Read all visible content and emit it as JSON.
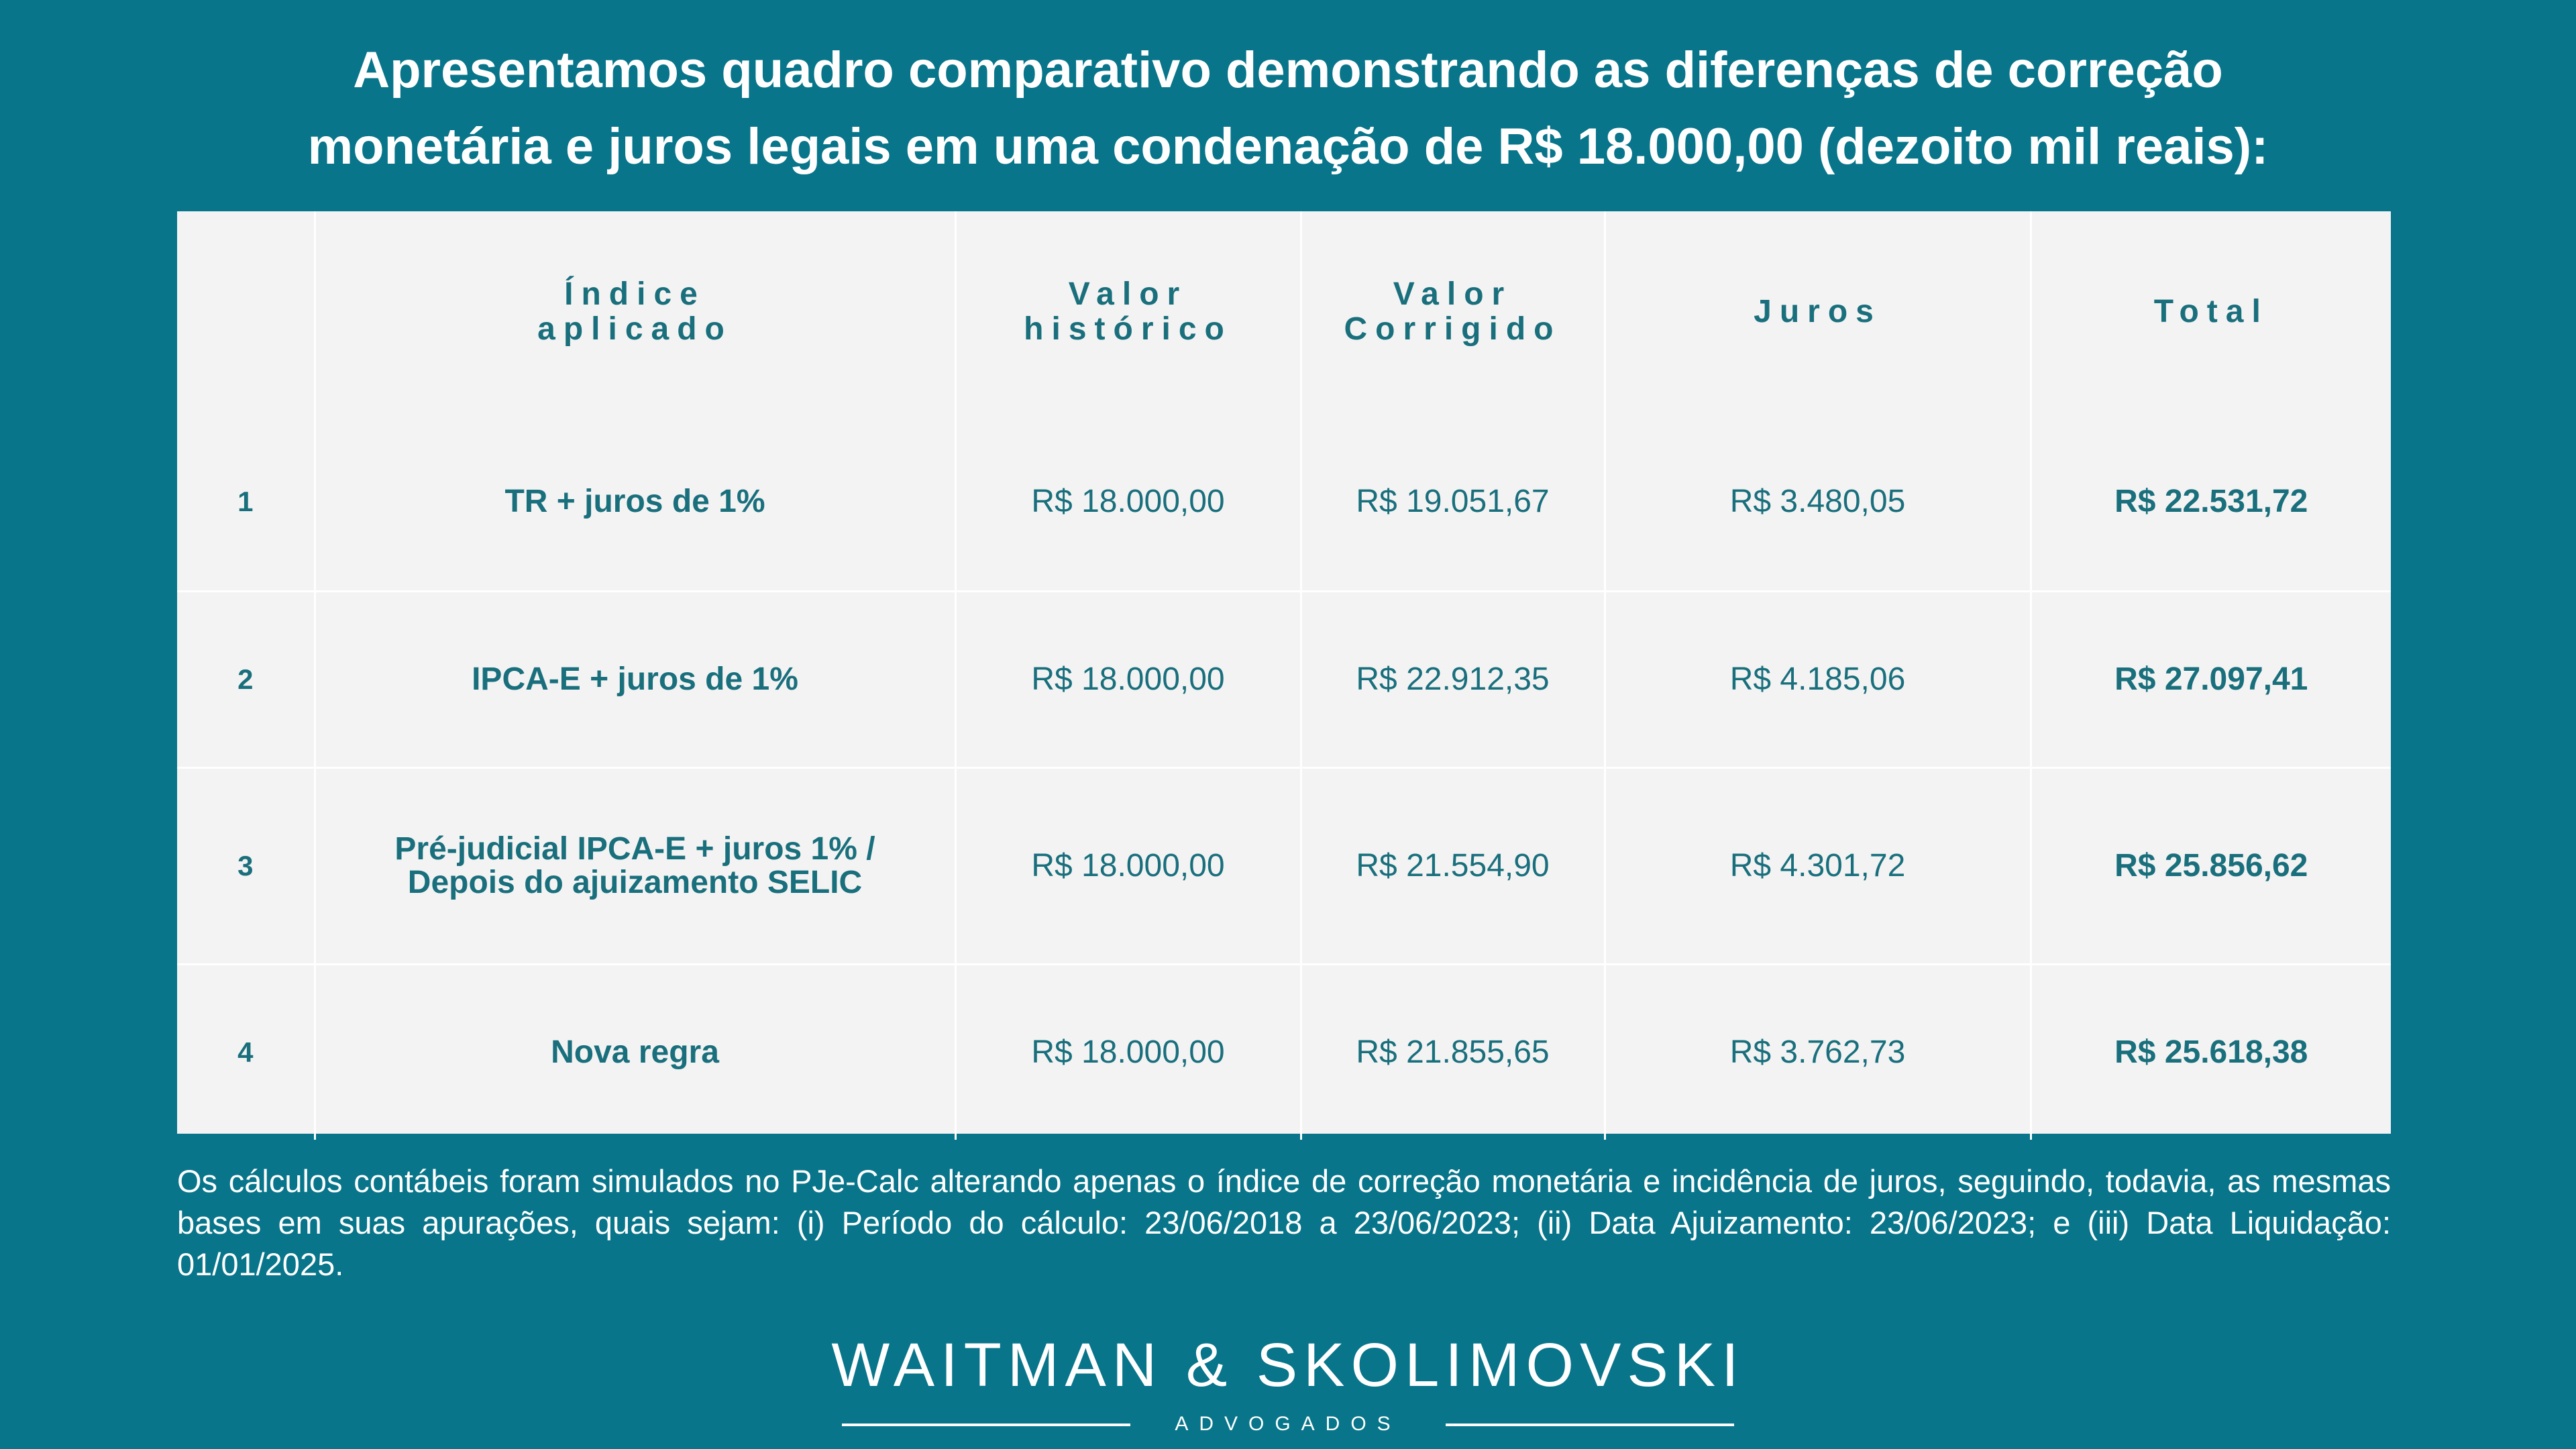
{
  "headline": {
    "line1": "Apresentamos  quadro comparativo demonstrando as diferenças de correção",
    "line2": "monetária e juros legais em uma condenação de R$ 18.000,00 (dezoito mil reais):"
  },
  "table": {
    "headers": {
      "num": "",
      "index_line1": "Índice",
      "index_line2": "aplicado",
      "historic_line1": "Valor",
      "historic_line2": "histórico",
      "corrected_line1": "Valor",
      "corrected_line2": "Corrigido",
      "interest": "Juros",
      "total": "Total"
    },
    "rows": [
      {
        "num": "1",
        "index_line1": "TR + juros de 1%",
        "index_line2": "",
        "historic": "R$ 18.000,00",
        "corrected": "R$ 19.051,67",
        "interest": "R$ 3.480,05",
        "total": "R$ 22.531,72"
      },
      {
        "num": "2",
        "index_line1": "IPCA-E + juros de 1%",
        "index_line2": "",
        "historic": "R$ 18.000,00",
        "corrected": "R$ 22.912,35",
        "interest": "R$ 4.185,06",
        "total": "R$ 27.097,41"
      },
      {
        "num": "3",
        "index_line1": "Pré-judicial IPCA-E + juros 1% /",
        "index_line2": "Depois do ajuizamento SELIC",
        "historic": "R$ 18.000,00",
        "corrected": "R$ 21.554,90",
        "interest": "R$ 4.301,72",
        "total": "R$ 25.856,62"
      },
      {
        "num": "4",
        "index_line1": "Nova regra",
        "index_line2": "",
        "historic": "R$ 18.000,00",
        "corrected": "R$ 21.855,65",
        "interest": "R$ 3.762,73",
        "total": "R$ 25.618,38"
      }
    ]
  },
  "footnote": "Os cálculos contábeis foram simulados no PJe-Calc alterando apenas o índice de correção monetária e incidência de juros, seguindo, todavia, as mesmas bases em suas apurações, quais sejam: (i) Período do cálculo: 23/06/2018 a 23/06/2023; (ii) Data Ajuizamento: 23/06/2023; e (iii) Data Liquidação: 01/01/2025.",
  "logo": {
    "name": "WAITMAN & SKOLIMOVSKI",
    "subtitle": "ADVOGADOS"
  },
  "colors": {
    "background": "#08758a",
    "table_background": "#f3f3f3",
    "table_text": "#1a6f7d",
    "text_light": "#ffffff"
  }
}
